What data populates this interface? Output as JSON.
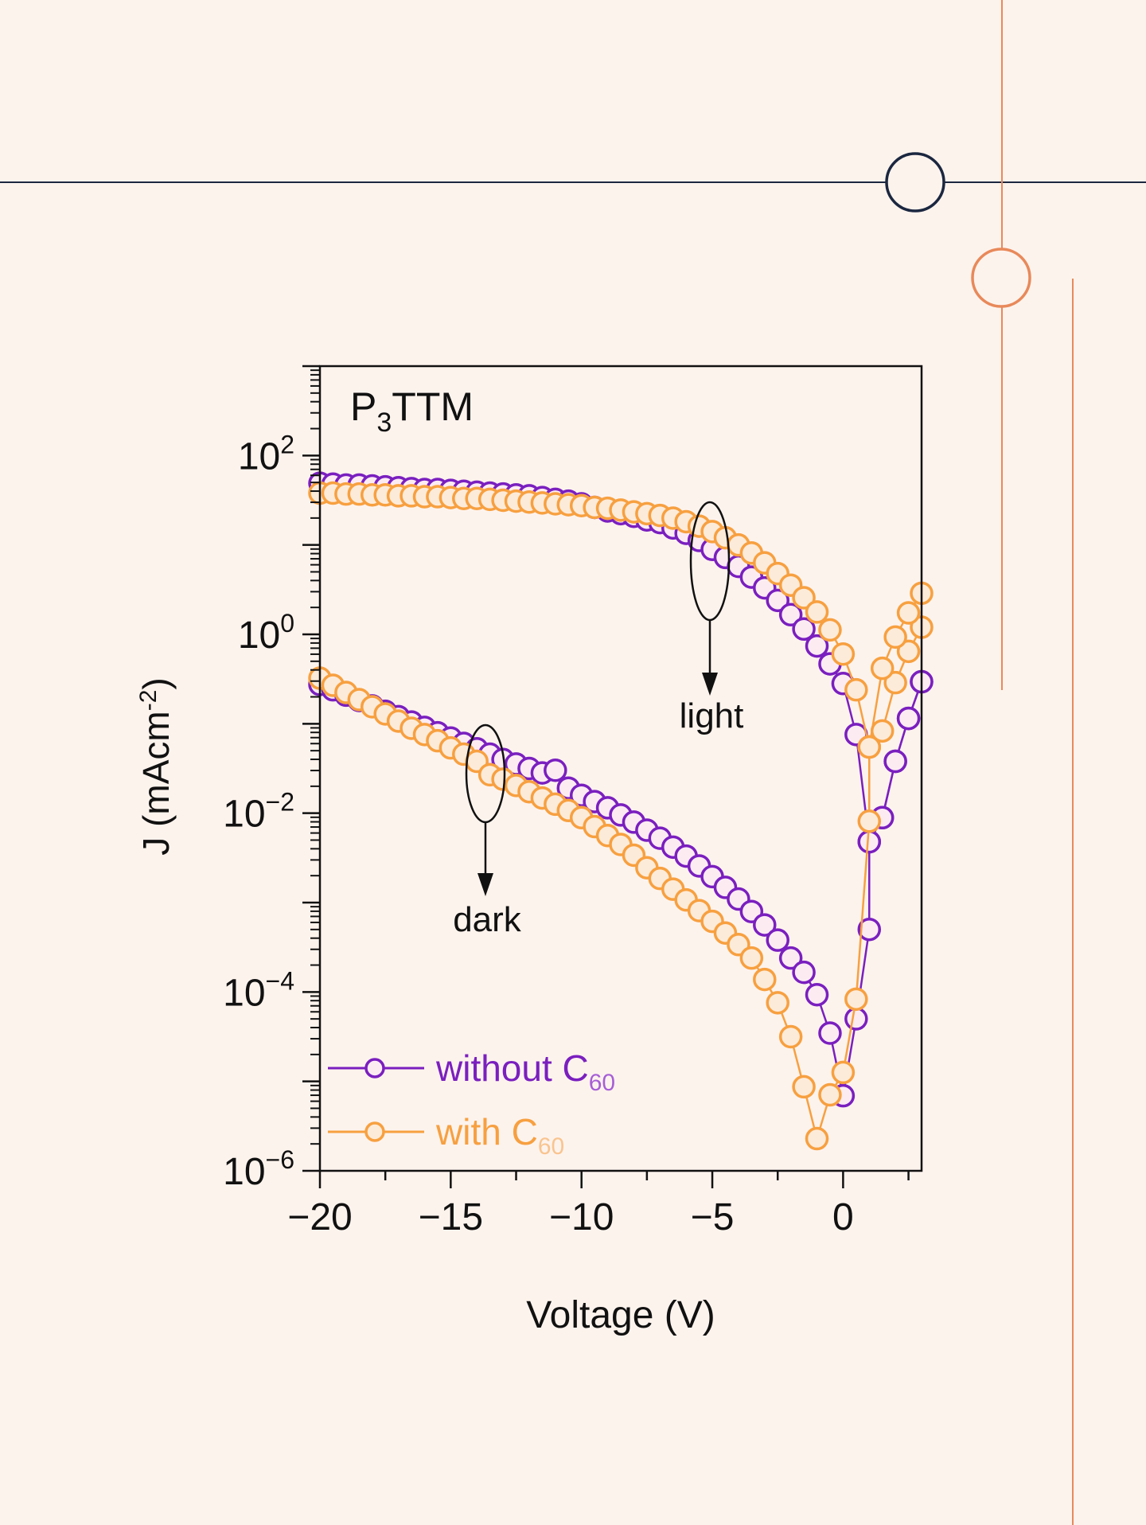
{
  "colors": {
    "background": "#fdf3ed",
    "deco_navy": "#1b2740",
    "deco_orange": "#e8895a",
    "series_without": "#7a1fbf",
    "series_with": "#f7a040",
    "marker_fill_without": "#fcecf2",
    "marker_fill_with": "#fdebd9"
  },
  "chart_data": {
    "type": "scatter",
    "title": "P3TTM",
    "title_main": "P",
    "title_sub": "3",
    "title_rest": "TTM",
    "xlabel": "Voltage (V)",
    "ylabel": "J (mAcm-2)",
    "ylabel_main": "J (mAcm",
    "ylabel_sup": "-2",
    "ylabel_close": ")",
    "xlim": [
      -20,
      3
    ],
    "ylim": [
      1e-06,
      1000
    ],
    "yscale": "log",
    "grid": false,
    "x_ticks": [
      {
        "value": -20,
        "label": "−20"
      },
      {
        "value": -15,
        "label": "−15"
      },
      {
        "value": -10,
        "label": "−10"
      },
      {
        "value": -5,
        "label": "−5"
      },
      {
        "value": 0,
        "label": "0"
      }
    ],
    "y_ticks": [
      {
        "value": 100,
        "base": "10",
        "exp": "2"
      },
      {
        "value": 1,
        "base": "10",
        "exp": "0"
      },
      {
        "value": 0.01,
        "base": "10",
        "exp": "−2"
      },
      {
        "value": 0.0001,
        "base": "10",
        "exp": "−4"
      },
      {
        "value": 1e-06,
        "base": "10",
        "exp": "−6"
      }
    ],
    "legend": {
      "placement": "bottom-left",
      "entries": [
        {
          "label": "without C",
          "sub": "60",
          "series": "without"
        },
        {
          "label": "with C",
          "sub": "60",
          "series": "with"
        }
      ]
    },
    "annotations": [
      {
        "text": "light",
        "x": -5,
        "log_center": 0.82,
        "target": "light curves"
      },
      {
        "text": "dark",
        "x": -13.8,
        "log_center": -1.56,
        "target": "dark curves"
      }
    ],
    "series": [
      {
        "name": "without C60 (light)",
        "group": "without",
        "log10_y": true,
        "points": [
          [
            -20,
            1.69
          ],
          [
            -19.5,
            1.68
          ],
          [
            -19,
            1.67
          ],
          [
            -18.5,
            1.67
          ],
          [
            -18,
            1.66
          ],
          [
            -17.5,
            1.65
          ],
          [
            -17,
            1.64
          ],
          [
            -16.5,
            1.63
          ],
          [
            -16,
            1.62
          ],
          [
            -15.5,
            1.62
          ],
          [
            -15,
            1.61
          ],
          [
            -14.5,
            1.6
          ],
          [
            -14,
            1.59
          ],
          [
            -13.5,
            1.58
          ],
          [
            -13,
            1.57
          ],
          [
            -12.5,
            1.56
          ],
          [
            -12,
            1.55
          ],
          [
            -11.5,
            1.53
          ],
          [
            -11,
            1.51
          ],
          [
            -10.5,
            1.49
          ],
          [
            -10,
            1.46
          ],
          [
            -9.5,
            1.42
          ],
          [
            -9,
            1.38
          ],
          [
            -8.5,
            1.35
          ],
          [
            -8,
            1.32
          ],
          [
            -7.5,
            1.28
          ],
          [
            -7,
            1.25
          ],
          [
            -6.5,
            1.19
          ],
          [
            -6,
            1.13
          ],
          [
            -5.5,
            1.05
          ],
          [
            -5,
            0.95
          ],
          [
            -4.5,
            0.86
          ],
          [
            -4,
            0.76
          ],
          [
            -3.5,
            0.64
          ],
          [
            -3,
            0.52
          ],
          [
            -2.5,
            0.38
          ],
          [
            -2,
            0.22
          ],
          [
            -1.5,
            0.06
          ],
          [
            -1,
            -0.13
          ],
          [
            -0.5,
            -0.33
          ],
          [
            0,
            -0.55
          ],
          [
            0.5,
            -1.12
          ],
          [
            1,
            -2.32
          ],
          [
            1.5,
            -2.05
          ],
          [
            2,
            -1.42
          ],
          [
            2.5,
            -0.94
          ],
          [
            3,
            -0.53
          ]
        ]
      },
      {
        "name": "with C60 (light)",
        "group": "with",
        "log10_y": true,
        "points": [
          [
            -20,
            1.58
          ],
          [
            -19.5,
            1.58
          ],
          [
            -19,
            1.57
          ],
          [
            -18.5,
            1.57
          ],
          [
            -18,
            1.56
          ],
          [
            -17.5,
            1.56
          ],
          [
            -17,
            1.55
          ],
          [
            -16.5,
            1.55
          ],
          [
            -16,
            1.54
          ],
          [
            -15.5,
            1.54
          ],
          [
            -15,
            1.53
          ],
          [
            -14.5,
            1.52
          ],
          [
            -14,
            1.52
          ],
          [
            -13.5,
            1.51
          ],
          [
            -13,
            1.5
          ],
          [
            -12.5,
            1.49
          ],
          [
            -12,
            1.48
          ],
          [
            -11.5,
            1.47
          ],
          [
            -11,
            1.46
          ],
          [
            -10.5,
            1.45
          ],
          [
            -10,
            1.44
          ],
          [
            -9.5,
            1.42
          ],
          [
            -9,
            1.41
          ],
          [
            -8.5,
            1.39
          ],
          [
            -8,
            1.37
          ],
          [
            -7.5,
            1.35
          ],
          [
            -7,
            1.33
          ],
          [
            -6.5,
            1.3
          ],
          [
            -6,
            1.26
          ],
          [
            -5.5,
            1.21
          ],
          [
            -5,
            1.15
          ],
          [
            -4.5,
            1.08
          ],
          [
            -4,
            1.0
          ],
          [
            -3.5,
            0.91
          ],
          [
            -3,
            0.8
          ],
          [
            -2.5,
            0.68
          ],
          [
            -2,
            0.55
          ],
          [
            -1.5,
            0.41
          ],
          [
            -1,
            0.25
          ],
          [
            -0.5,
            0.05
          ],
          [
            0,
            -0.22
          ],
          [
            0.5,
            -0.62
          ],
          [
            1,
            -1.26
          ],
          [
            1.5,
            -1.08
          ],
          [
            2,
            -0.54
          ],
          [
            2.5,
            -0.19
          ],
          [
            3,
            0.08
          ]
        ]
      },
      {
        "name": "with C60 (light, branch)",
        "group": "with",
        "log10_y": true,
        "points": [
          [
            1,
            -1.26
          ],
          [
            1.5,
            -0.38
          ],
          [
            2,
            -0.03
          ],
          [
            2.5,
            0.24
          ],
          [
            3,
            0.46
          ]
        ]
      },
      {
        "name": "without C60 (dark)",
        "group": "without",
        "log10_y": true,
        "points": [
          [
            -20,
            -0.56
          ],
          [
            -19.5,
            -0.62
          ],
          [
            -19,
            -0.68
          ],
          [
            -18.5,
            -0.74
          ],
          [
            -18,
            -0.8
          ],
          [
            -17.5,
            -0.86
          ],
          [
            -17,
            -0.92
          ],
          [
            -16.5,
            -0.98
          ],
          [
            -16,
            -1.04
          ],
          [
            -15.5,
            -1.1
          ],
          [
            -15,
            -1.16
          ],
          [
            -14.5,
            -1.22
          ],
          [
            -14,
            -1.28
          ],
          [
            -13.5,
            -1.34
          ],
          [
            -13,
            -1.4
          ],
          [
            -12.5,
            -1.45
          ],
          [
            -12,
            -1.5
          ],
          [
            -11.5,
            -1.55
          ],
          [
            -11,
            -1.52
          ],
          [
            -10.5,
            -1.72
          ],
          [
            -10,
            -1.8
          ],
          [
            -9.5,
            -1.87
          ],
          [
            -9,
            -1.94
          ],
          [
            -8.5,
            -2.02
          ],
          [
            -8,
            -2.1
          ],
          [
            -7.5,
            -2.19
          ],
          [
            -7,
            -2.28
          ],
          [
            -6.5,
            -2.38
          ],
          [
            -6,
            -2.48
          ],
          [
            -5.5,
            -2.59
          ],
          [
            -5,
            -2.71
          ],
          [
            -4.5,
            -2.83
          ],
          [
            -4,
            -2.96
          ],
          [
            -3.5,
            -3.1
          ],
          [
            -3,
            -3.25
          ],
          [
            -2.5,
            -3.42
          ],
          [
            -2,
            -3.62
          ],
          [
            -1.5,
            -3.78
          ],
          [
            -1,
            -4.03
          ],
          [
            -0.5,
            -4.46
          ],
          [
            0,
            -5.16
          ],
          [
            0.5,
            -4.3
          ],
          [
            1,
            -3.3
          ],
          [
            1,
            -2.32
          ],
          [
            1.5,
            -2.05
          ],
          [
            2,
            -1.42
          ],
          [
            2.5,
            -0.94
          ],
          [
            3,
            -0.53
          ]
        ]
      },
      {
        "name": "with C60 (dark)",
        "group": "with",
        "log10_y": true,
        "points": [
          [
            -20,
            -0.49
          ],
          [
            -19.5,
            -0.57
          ],
          [
            -19,
            -0.65
          ],
          [
            -18.5,
            -0.73
          ],
          [
            -18,
            -0.81
          ],
          [
            -17.5,
            -0.89
          ],
          [
            -17,
            -0.97
          ],
          [
            -16.5,
            -1.05
          ],
          [
            -16,
            -1.12
          ],
          [
            -15.5,
            -1.19
          ],
          [
            -15,
            -1.27
          ],
          [
            -14.5,
            -1.34
          ],
          [
            -14,
            -1.42
          ],
          [
            -13.5,
            -1.57
          ],
          [
            -13,
            -1.62
          ],
          [
            -12.5,
            -1.69
          ],
          [
            -12,
            -1.76
          ],
          [
            -11.5,
            -1.83
          ],
          [
            -11,
            -1.9
          ],
          [
            -10.5,
            -1.97
          ],
          [
            -10,
            -2.05
          ],
          [
            -9.5,
            -2.15
          ],
          [
            -9,
            -2.25
          ],
          [
            -8.5,
            -2.35
          ],
          [
            -8,
            -2.47
          ],
          [
            -7.5,
            -2.61
          ],
          [
            -7,
            -2.73
          ],
          [
            -6.5,
            -2.85
          ],
          [
            -6,
            -2.97
          ],
          [
            -5.5,
            -3.09
          ],
          [
            -5,
            -3.21
          ],
          [
            -4.5,
            -3.34
          ],
          [
            -4,
            -3.47
          ],
          [
            -3.5,
            -3.62
          ],
          [
            -3,
            -3.86
          ],
          [
            -2.5,
            -4.12
          ],
          [
            -2,
            -4.5
          ],
          [
            -1.5,
            -5.06
          ],
          [
            -1,
            -5.64
          ],
          [
            -0.5,
            -5.15
          ],
          [
            0,
            -4.9
          ],
          [
            0.5,
            -4.08
          ],
          [
            1,
            -2.09
          ],
          [
            1,
            -1.26
          ]
        ]
      }
    ]
  }
}
